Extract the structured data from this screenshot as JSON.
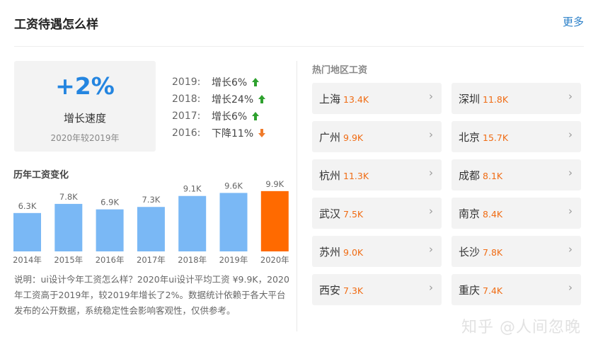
{
  "header": {
    "title": "工资待遇怎么样",
    "more_label": "更多"
  },
  "growth": {
    "value": "+2%",
    "label": "增长速度",
    "sub": "2020年较2019年",
    "value_color": "#2485e0"
  },
  "year_changes": [
    {
      "year": "2019:",
      "change": "增长6%",
      "direction": "up"
    },
    {
      "year": "2018:",
      "change": "增长24%",
      "direction": "up"
    },
    {
      "year": "2017:",
      "change": "增长6%",
      "direction": "up"
    },
    {
      "year": "2016:",
      "change": "下降11%",
      "direction": "down"
    }
  ],
  "colors": {
    "up": "#2ea12e",
    "down": "#f07b2b",
    "bar": "#7ab8f5",
    "bar_highlight": "#ff6a00",
    "salary": "#f06c14"
  },
  "chart_title": "历年工资变化",
  "chart_data": {
    "type": "bar",
    "categories": [
      "2014年",
      "2015年",
      "2016年",
      "2017年",
      "2018年",
      "2019年",
      "2020年"
    ],
    "values": [
      6.3,
      7.8,
      6.9,
      7.3,
      9.1,
      9.6,
      9.9
    ],
    "labels": [
      "6.3K",
      "7.8K",
      "6.9K",
      "7.3K",
      "9.1K",
      "9.6K",
      "9.9K"
    ],
    "highlight_index": 6,
    "ylim": [
      0,
      10
    ]
  },
  "description": "说明：ui设计今年工资怎么样？2020年ui设计平均工资 ¥9.9K，2020年工资高于2019年，较2019年增长了2%。数据统计依赖于各大平台发布的公开数据，系统稳定性会影响客观性，仅供参考。",
  "hot_title": "热门地区工资",
  "cities": [
    {
      "name": "上海",
      "salary": "13.4K"
    },
    {
      "name": "深圳",
      "salary": "11.8K"
    },
    {
      "name": "广州",
      "salary": "9.9K"
    },
    {
      "name": "北京",
      "salary": "15.7K"
    },
    {
      "name": "杭州",
      "salary": "11.3K"
    },
    {
      "name": "成都",
      "salary": "8.1K"
    },
    {
      "name": "武汉",
      "salary": "7.5K"
    },
    {
      "name": "南京",
      "salary": "8.4K"
    },
    {
      "name": "苏州",
      "salary": "9.0K"
    },
    {
      "name": "长沙",
      "salary": "7.8K"
    },
    {
      "name": "西安",
      "salary": "7.3K"
    },
    {
      "name": "重庆",
      "salary": "7.4K"
    }
  ],
  "watermark": "知乎 @人间忽晚"
}
